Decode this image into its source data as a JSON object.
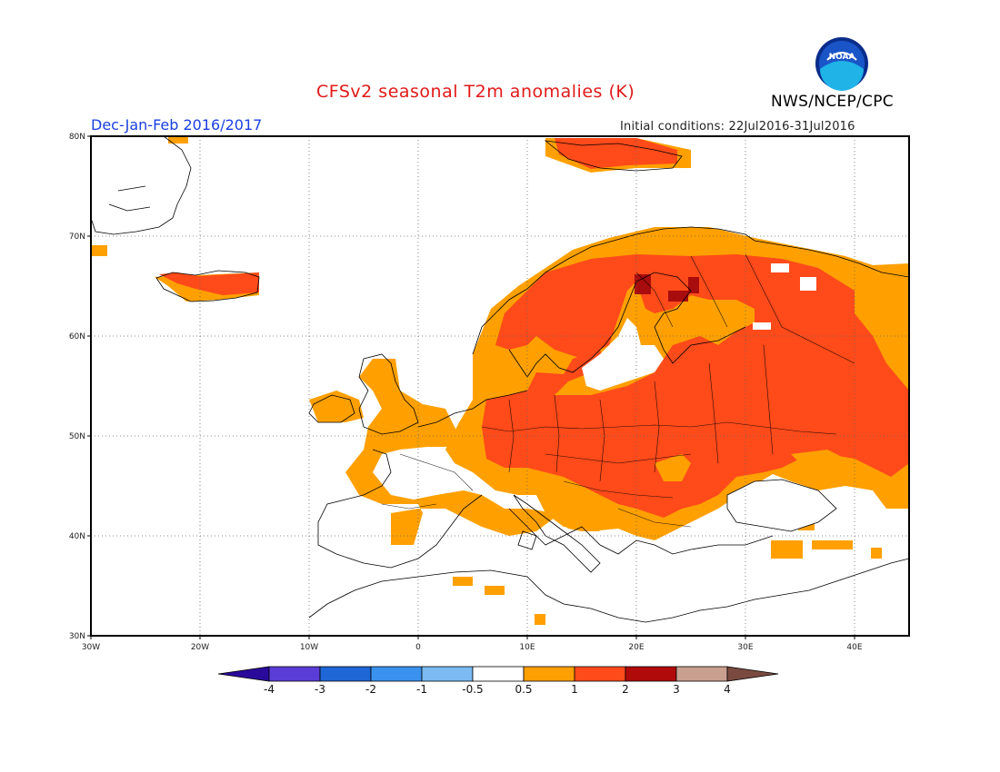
{
  "header": {
    "title": "CFSv2 seasonal T2m anomalies (K)",
    "agency": "NWS/NCEP/CPC",
    "logo_text": "NOAA",
    "season": "Dec-Jan-Feb 2016/2017",
    "initial_conditions": "Initial conditions: 22Jul2016-31Jul2016"
  },
  "map": {
    "lon_range": [
      -30,
      45
    ],
    "lat_range": [
      30,
      80
    ],
    "lat_labels": [
      "80N",
      "70N",
      "60N",
      "50N",
      "40N",
      "30N"
    ],
    "lon_labels": [
      "30W",
      "20W",
      "10W",
      "0",
      "10E",
      "20E",
      "30E",
      "40E"
    ],
    "grid": "dotted",
    "projection": "equirectangular"
  },
  "colorbar": {
    "labels": [
      "-4",
      "-3",
      "-2",
      "-1",
      "-0.5",
      "0.5",
      "1",
      "2",
      "3",
      "4"
    ],
    "colors": [
      "#2a0a9a",
      "#5a3dd6",
      "#1f66d6",
      "#3a92ee",
      "#7bbaf2",
      "#ffffff",
      "#ffa000",
      "#ff4a1a",
      "#b00a0a",
      "#c9a090",
      "#7a4a40"
    ]
  },
  "colors": {
    "warm1": "#ffa000",
    "warm2": "#ff4a1a",
    "warm3": "#a80c0c",
    "title": "#e11919",
    "season": "#1a3fe0"
  }
}
